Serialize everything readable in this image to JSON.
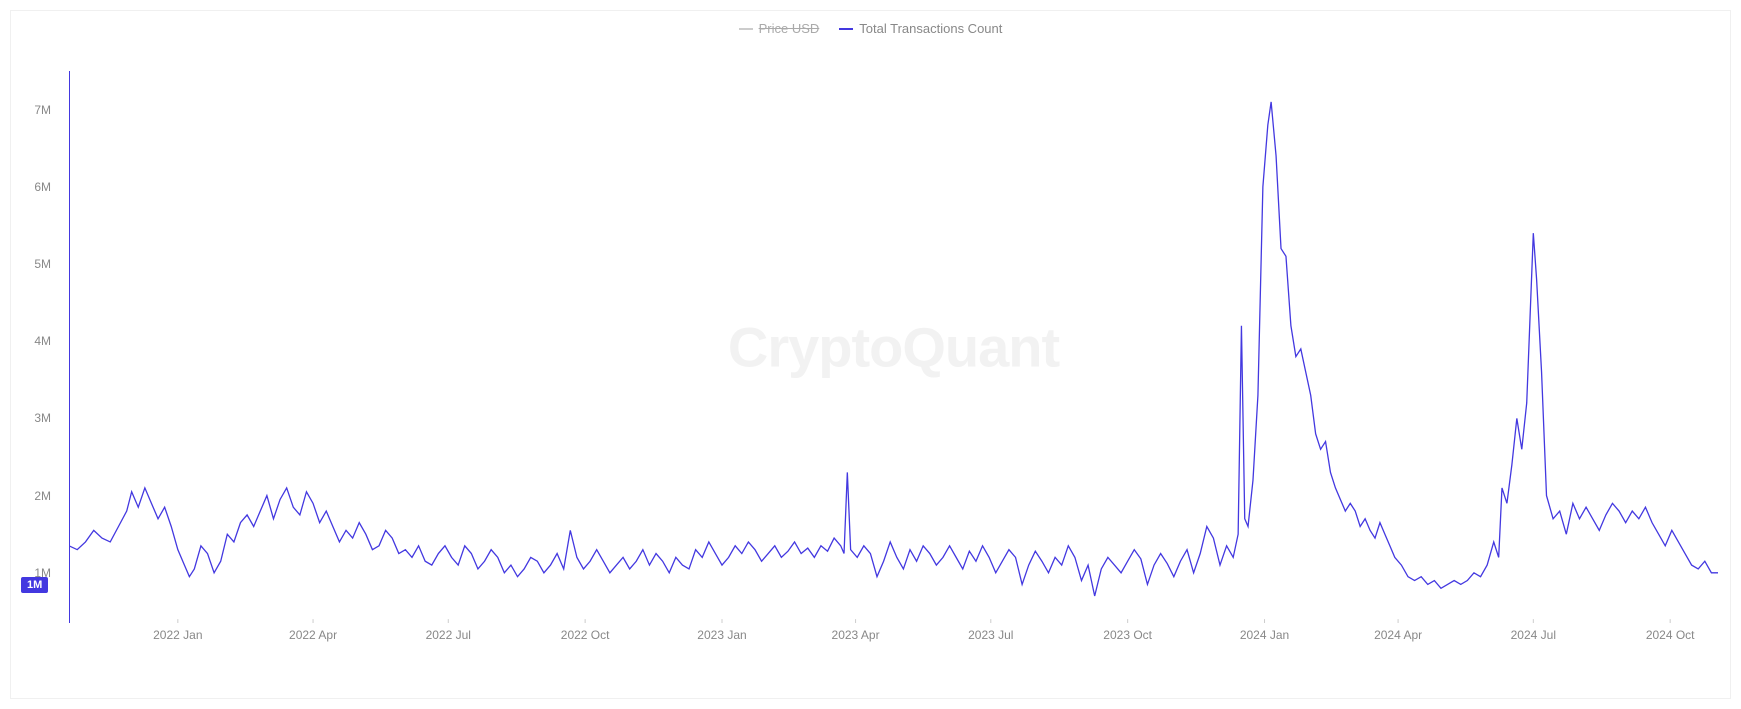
{
  "legend": {
    "disabled_label": "Price USD",
    "disabled_color": "#cccccc",
    "active_label": "Total Transactions Count",
    "active_color": "#4338e0"
  },
  "watermark": "CryptoQuant",
  "chart": {
    "type": "line",
    "line_color": "#4338e0",
    "line_width": 1.3,
    "background_color": "#ffffff",
    "y_axis_color": "#4338e0",
    "y_ticks": [
      {
        "value": 1000000,
        "label": "1M"
      },
      {
        "value": 2000000,
        "label": "2M"
      },
      {
        "value": 3000000,
        "label": "3M"
      },
      {
        "value": 4000000,
        "label": "4M"
      },
      {
        "value": 5000000,
        "label": "5M"
      },
      {
        "value": 6000000,
        "label": "6M"
      },
      {
        "value": 7000000,
        "label": "7M"
      }
    ],
    "ylim": [
      350000,
      7500000
    ],
    "y_current_badge": {
      "value": 1000000,
      "label": "1M"
    },
    "x_ticks": [
      {
        "t": 0.066,
        "label": "2022 Jan"
      },
      {
        "t": 0.148,
        "label": "2022 Apr"
      },
      {
        "t": 0.23,
        "label": "2022 Jul"
      },
      {
        "t": 0.313,
        "label": "2022 Oct"
      },
      {
        "t": 0.396,
        "label": "2023 Jan"
      },
      {
        "t": 0.477,
        "label": "2023 Apr"
      },
      {
        "t": 0.559,
        "label": "2023 Jul"
      },
      {
        "t": 0.642,
        "label": "2023 Oct"
      },
      {
        "t": 0.725,
        "label": "2024 Jan"
      },
      {
        "t": 0.806,
        "label": "2024 Apr"
      },
      {
        "t": 0.888,
        "label": "2024 Jul"
      },
      {
        "t": 0.971,
        "label": "2024 Oct"
      }
    ],
    "grid_color": "#f5f5f5",
    "label_color": "#888888",
    "label_fontsize": 12,
    "series": [
      {
        "t": 0.0,
        "v": 1350000
      },
      {
        "t": 0.005,
        "v": 1300000
      },
      {
        "t": 0.01,
        "v": 1400000
      },
      {
        "t": 0.015,
        "v": 1550000
      },
      {
        "t": 0.02,
        "v": 1450000
      },
      {
        "t": 0.025,
        "v": 1400000
      },
      {
        "t": 0.03,
        "v": 1600000
      },
      {
        "t": 0.035,
        "v": 1800000
      },
      {
        "t": 0.038,
        "v": 2050000
      },
      {
        "t": 0.042,
        "v": 1850000
      },
      {
        "t": 0.046,
        "v": 2100000
      },
      {
        "t": 0.05,
        "v": 1900000
      },
      {
        "t": 0.054,
        "v": 1700000
      },
      {
        "t": 0.058,
        "v": 1850000
      },
      {
        "t": 0.062,
        "v": 1600000
      },
      {
        "t": 0.066,
        "v": 1300000
      },
      {
        "t": 0.07,
        "v": 1100000
      },
      {
        "t": 0.073,
        "v": 950000
      },
      {
        "t": 0.076,
        "v": 1050000
      },
      {
        "t": 0.08,
        "v": 1350000
      },
      {
        "t": 0.084,
        "v": 1250000
      },
      {
        "t": 0.088,
        "v": 1000000
      },
      {
        "t": 0.092,
        "v": 1150000
      },
      {
        "t": 0.096,
        "v": 1500000
      },
      {
        "t": 0.1,
        "v": 1400000
      },
      {
        "t": 0.104,
        "v": 1650000
      },
      {
        "t": 0.108,
        "v": 1750000
      },
      {
        "t": 0.112,
        "v": 1600000
      },
      {
        "t": 0.116,
        "v": 1800000
      },
      {
        "t": 0.12,
        "v": 2000000
      },
      {
        "t": 0.124,
        "v": 1700000
      },
      {
        "t": 0.128,
        "v": 1950000
      },
      {
        "t": 0.132,
        "v": 2100000
      },
      {
        "t": 0.136,
        "v": 1850000
      },
      {
        "t": 0.14,
        "v": 1750000
      },
      {
        "t": 0.144,
        "v": 2050000
      },
      {
        "t": 0.148,
        "v": 1900000
      },
      {
        "t": 0.152,
        "v": 1650000
      },
      {
        "t": 0.156,
        "v": 1800000
      },
      {
        "t": 0.16,
        "v": 1600000
      },
      {
        "t": 0.164,
        "v": 1400000
      },
      {
        "t": 0.168,
        "v": 1550000
      },
      {
        "t": 0.172,
        "v": 1450000
      },
      {
        "t": 0.176,
        "v": 1650000
      },
      {
        "t": 0.18,
        "v": 1500000
      },
      {
        "t": 0.184,
        "v": 1300000
      },
      {
        "t": 0.188,
        "v": 1350000
      },
      {
        "t": 0.192,
        "v": 1550000
      },
      {
        "t": 0.196,
        "v": 1450000
      },
      {
        "t": 0.2,
        "v": 1250000
      },
      {
        "t": 0.204,
        "v": 1300000
      },
      {
        "t": 0.208,
        "v": 1200000
      },
      {
        "t": 0.212,
        "v": 1350000
      },
      {
        "t": 0.216,
        "v": 1150000
      },
      {
        "t": 0.22,
        "v": 1100000
      },
      {
        "t": 0.224,
        "v": 1250000
      },
      {
        "t": 0.228,
        "v": 1350000
      },
      {
        "t": 0.232,
        "v": 1200000
      },
      {
        "t": 0.236,
        "v": 1100000
      },
      {
        "t": 0.24,
        "v": 1350000
      },
      {
        "t": 0.244,
        "v": 1250000
      },
      {
        "t": 0.248,
        "v": 1050000
      },
      {
        "t": 0.252,
        "v": 1150000
      },
      {
        "t": 0.256,
        "v": 1300000
      },
      {
        "t": 0.26,
        "v": 1200000
      },
      {
        "t": 0.264,
        "v": 1000000
      },
      {
        "t": 0.268,
        "v": 1100000
      },
      {
        "t": 0.272,
        "v": 950000
      },
      {
        "t": 0.276,
        "v": 1050000
      },
      {
        "t": 0.28,
        "v": 1200000
      },
      {
        "t": 0.284,
        "v": 1150000
      },
      {
        "t": 0.288,
        "v": 1000000
      },
      {
        "t": 0.292,
        "v": 1100000
      },
      {
        "t": 0.296,
        "v": 1250000
      },
      {
        "t": 0.3,
        "v": 1050000
      },
      {
        "t": 0.304,
        "v": 1550000
      },
      {
        "t": 0.308,
        "v": 1200000
      },
      {
        "t": 0.312,
        "v": 1050000
      },
      {
        "t": 0.316,
        "v": 1150000
      },
      {
        "t": 0.32,
        "v": 1300000
      },
      {
        "t": 0.324,
        "v": 1150000
      },
      {
        "t": 0.328,
        "v": 1000000
      },
      {
        "t": 0.332,
        "v": 1100000
      },
      {
        "t": 0.336,
        "v": 1200000
      },
      {
        "t": 0.34,
        "v": 1050000
      },
      {
        "t": 0.344,
        "v": 1150000
      },
      {
        "t": 0.348,
        "v": 1300000
      },
      {
        "t": 0.352,
        "v": 1100000
      },
      {
        "t": 0.356,
        "v": 1250000
      },
      {
        "t": 0.36,
        "v": 1150000
      },
      {
        "t": 0.364,
        "v": 1000000
      },
      {
        "t": 0.368,
        "v": 1200000
      },
      {
        "t": 0.372,
        "v": 1100000
      },
      {
        "t": 0.376,
        "v": 1050000
      },
      {
        "t": 0.38,
        "v": 1300000
      },
      {
        "t": 0.384,
        "v": 1200000
      },
      {
        "t": 0.388,
        "v": 1400000
      },
      {
        "t": 0.392,
        "v": 1250000
      },
      {
        "t": 0.396,
        "v": 1100000
      },
      {
        "t": 0.4,
        "v": 1200000
      },
      {
        "t": 0.404,
        "v": 1350000
      },
      {
        "t": 0.408,
        "v": 1250000
      },
      {
        "t": 0.412,
        "v": 1400000
      },
      {
        "t": 0.416,
        "v": 1300000
      },
      {
        "t": 0.42,
        "v": 1150000
      },
      {
        "t": 0.424,
        "v": 1250000
      },
      {
        "t": 0.428,
        "v": 1350000
      },
      {
        "t": 0.432,
        "v": 1200000
      },
      {
        "t": 0.436,
        "v": 1280000
      },
      {
        "t": 0.44,
        "v": 1400000
      },
      {
        "t": 0.444,
        "v": 1250000
      },
      {
        "t": 0.448,
        "v": 1320000
      },
      {
        "t": 0.452,
        "v": 1200000
      },
      {
        "t": 0.456,
        "v": 1350000
      },
      {
        "t": 0.46,
        "v": 1280000
      },
      {
        "t": 0.464,
        "v": 1450000
      },
      {
        "t": 0.468,
        "v": 1350000
      },
      {
        "t": 0.47,
        "v": 1250000
      },
      {
        "t": 0.472,
        "v": 2300000
      },
      {
        "t": 0.474,
        "v": 1300000
      },
      {
        "t": 0.478,
        "v": 1200000
      },
      {
        "t": 0.482,
        "v": 1350000
      },
      {
        "t": 0.486,
        "v": 1250000
      },
      {
        "t": 0.49,
        "v": 950000
      },
      {
        "t": 0.494,
        "v": 1150000
      },
      {
        "t": 0.498,
        "v": 1400000
      },
      {
        "t": 0.502,
        "v": 1200000
      },
      {
        "t": 0.506,
        "v": 1050000
      },
      {
        "t": 0.51,
        "v": 1300000
      },
      {
        "t": 0.514,
        "v": 1150000
      },
      {
        "t": 0.518,
        "v": 1350000
      },
      {
        "t": 0.522,
        "v": 1250000
      },
      {
        "t": 0.526,
        "v": 1100000
      },
      {
        "t": 0.53,
        "v": 1200000
      },
      {
        "t": 0.534,
        "v": 1350000
      },
      {
        "t": 0.538,
        "v": 1200000
      },
      {
        "t": 0.542,
        "v": 1050000
      },
      {
        "t": 0.546,
        "v": 1280000
      },
      {
        "t": 0.55,
        "v": 1150000
      },
      {
        "t": 0.554,
        "v": 1350000
      },
      {
        "t": 0.558,
        "v": 1200000
      },
      {
        "t": 0.562,
        "v": 1000000
      },
      {
        "t": 0.566,
        "v": 1150000
      },
      {
        "t": 0.57,
        "v": 1300000
      },
      {
        "t": 0.574,
        "v": 1200000
      },
      {
        "t": 0.578,
        "v": 850000
      },
      {
        "t": 0.582,
        "v": 1100000
      },
      {
        "t": 0.586,
        "v": 1280000
      },
      {
        "t": 0.59,
        "v": 1150000
      },
      {
        "t": 0.594,
        "v": 1000000
      },
      {
        "t": 0.598,
        "v": 1200000
      },
      {
        "t": 0.602,
        "v": 1100000
      },
      {
        "t": 0.606,
        "v": 1350000
      },
      {
        "t": 0.61,
        "v": 1200000
      },
      {
        "t": 0.614,
        "v": 900000
      },
      {
        "t": 0.618,
        "v": 1100000
      },
      {
        "t": 0.622,
        "v": 700000
      },
      {
        "t": 0.626,
        "v": 1050000
      },
      {
        "t": 0.63,
        "v": 1200000
      },
      {
        "t": 0.634,
        "v": 1100000
      },
      {
        "t": 0.638,
        "v": 1000000
      },
      {
        "t": 0.642,
        "v": 1150000
      },
      {
        "t": 0.646,
        "v": 1300000
      },
      {
        "t": 0.65,
        "v": 1180000
      },
      {
        "t": 0.654,
        "v": 850000
      },
      {
        "t": 0.658,
        "v": 1100000
      },
      {
        "t": 0.662,
        "v": 1250000
      },
      {
        "t": 0.666,
        "v": 1120000
      },
      {
        "t": 0.67,
        "v": 950000
      },
      {
        "t": 0.674,
        "v": 1150000
      },
      {
        "t": 0.678,
        "v": 1300000
      },
      {
        "t": 0.682,
        "v": 1000000
      },
      {
        "t": 0.686,
        "v": 1250000
      },
      {
        "t": 0.69,
        "v": 1600000
      },
      {
        "t": 0.694,
        "v": 1450000
      },
      {
        "t": 0.698,
        "v": 1100000
      },
      {
        "t": 0.702,
        "v": 1350000
      },
      {
        "t": 0.706,
        "v": 1200000
      },
      {
        "t": 0.709,
        "v": 1500000
      },
      {
        "t": 0.711,
        "v": 4200000
      },
      {
        "t": 0.713,
        "v": 1700000
      },
      {
        "t": 0.715,
        "v": 1600000
      },
      {
        "t": 0.718,
        "v": 2200000
      },
      {
        "t": 0.721,
        "v": 3300000
      },
      {
        "t": 0.724,
        "v": 6000000
      },
      {
        "t": 0.727,
        "v": 6800000
      },
      {
        "t": 0.729,
        "v": 7100000
      },
      {
        "t": 0.732,
        "v": 6400000
      },
      {
        "t": 0.735,
        "v": 5200000
      },
      {
        "t": 0.738,
        "v": 5100000
      },
      {
        "t": 0.741,
        "v": 4200000
      },
      {
        "t": 0.744,
        "v": 3800000
      },
      {
        "t": 0.747,
        "v": 3900000
      },
      {
        "t": 0.75,
        "v": 3600000
      },
      {
        "t": 0.753,
        "v": 3300000
      },
      {
        "t": 0.756,
        "v": 2800000
      },
      {
        "t": 0.759,
        "v": 2600000
      },
      {
        "t": 0.762,
        "v": 2700000
      },
      {
        "t": 0.765,
        "v": 2300000
      },
      {
        "t": 0.768,
        "v": 2100000
      },
      {
        "t": 0.771,
        "v": 1950000
      },
      {
        "t": 0.774,
        "v": 1800000
      },
      {
        "t": 0.777,
        "v": 1900000
      },
      {
        "t": 0.78,
        "v": 1800000
      },
      {
        "t": 0.783,
        "v": 1600000
      },
      {
        "t": 0.786,
        "v": 1700000
      },
      {
        "t": 0.789,
        "v": 1550000
      },
      {
        "t": 0.792,
        "v": 1450000
      },
      {
        "t": 0.795,
        "v": 1650000
      },
      {
        "t": 0.798,
        "v": 1500000
      },
      {
        "t": 0.801,
        "v": 1350000
      },
      {
        "t": 0.804,
        "v": 1200000
      },
      {
        "t": 0.808,
        "v": 1100000
      },
      {
        "t": 0.812,
        "v": 950000
      },
      {
        "t": 0.816,
        "v": 900000
      },
      {
        "t": 0.82,
        "v": 950000
      },
      {
        "t": 0.824,
        "v": 850000
      },
      {
        "t": 0.828,
        "v": 900000
      },
      {
        "t": 0.832,
        "v": 800000
      },
      {
        "t": 0.836,
        "v": 850000
      },
      {
        "t": 0.84,
        "v": 900000
      },
      {
        "t": 0.844,
        "v": 850000
      },
      {
        "t": 0.848,
        "v": 900000
      },
      {
        "t": 0.852,
        "v": 1000000
      },
      {
        "t": 0.856,
        "v": 950000
      },
      {
        "t": 0.86,
        "v": 1100000
      },
      {
        "t": 0.864,
        "v": 1400000
      },
      {
        "t": 0.867,
        "v": 1200000
      },
      {
        "t": 0.869,
        "v": 2100000
      },
      {
        "t": 0.872,
        "v": 1900000
      },
      {
        "t": 0.875,
        "v": 2400000
      },
      {
        "t": 0.878,
        "v": 3000000
      },
      {
        "t": 0.881,
        "v": 2600000
      },
      {
        "t": 0.884,
        "v": 3200000
      },
      {
        "t": 0.886,
        "v": 4300000
      },
      {
        "t": 0.888,
        "v": 5400000
      },
      {
        "t": 0.89,
        "v": 4800000
      },
      {
        "t": 0.893,
        "v": 3600000
      },
      {
        "t": 0.896,
        "v": 2000000
      },
      {
        "t": 0.9,
        "v": 1700000
      },
      {
        "t": 0.904,
        "v": 1800000
      },
      {
        "t": 0.908,
        "v": 1500000
      },
      {
        "t": 0.912,
        "v": 1900000
      },
      {
        "t": 0.916,
        "v": 1700000
      },
      {
        "t": 0.92,
        "v": 1850000
      },
      {
        "t": 0.924,
        "v": 1700000
      },
      {
        "t": 0.928,
        "v": 1550000
      },
      {
        "t": 0.932,
        "v": 1750000
      },
      {
        "t": 0.936,
        "v": 1900000
      },
      {
        "t": 0.94,
        "v": 1800000
      },
      {
        "t": 0.944,
        "v": 1650000
      },
      {
        "t": 0.948,
        "v": 1800000
      },
      {
        "t": 0.952,
        "v": 1700000
      },
      {
        "t": 0.956,
        "v": 1850000
      },
      {
        "t": 0.96,
        "v": 1650000
      },
      {
        "t": 0.964,
        "v": 1500000
      },
      {
        "t": 0.968,
        "v": 1350000
      },
      {
        "t": 0.972,
        "v": 1550000
      },
      {
        "t": 0.976,
        "v": 1400000
      },
      {
        "t": 0.98,
        "v": 1250000
      },
      {
        "t": 0.984,
        "v": 1100000
      },
      {
        "t": 0.988,
        "v": 1050000
      },
      {
        "t": 0.992,
        "v": 1150000
      },
      {
        "t": 0.996,
        "v": 1000000
      },
      {
        "t": 1.0,
        "v": 1000000
      }
    ]
  }
}
